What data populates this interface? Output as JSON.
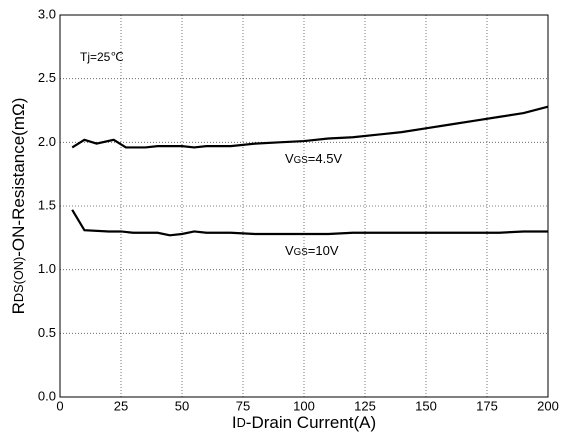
{
  "chart_data": {
    "type": "line",
    "xlabel": {
      "main": "I",
      "sub": "D",
      "rest": "-Drain Current(A)"
    },
    "ylabel": {
      "main": "R",
      "sub": "DS(ON)",
      "rest": "-ON-Resistance(mΩ)"
    },
    "annotations": [
      {
        "main": "Tj=25℃"
      },
      {
        "main": "V",
        "sub": "GS",
        "rest": "=4.5V"
      },
      {
        "main": "V",
        "sub": "GS",
        "rest": "=10V"
      }
    ],
    "series": [
      {
        "color": "#000000",
        "x": [
          5,
          10,
          15,
          22,
          27,
          35,
          40,
          50,
          55,
          60,
          70,
          80,
          90,
          100,
          110,
          120,
          130,
          140,
          150,
          160,
          170,
          180,
          190,
          200
        ],
        "values": [
          1.96,
          2.02,
          1.99,
          2.02,
          1.96,
          1.96,
          1.97,
          1.97,
          1.96,
          1.97,
          1.97,
          1.99,
          2.0,
          2.01,
          2.03,
          2.04,
          2.06,
          2.08,
          2.11,
          2.14,
          2.17,
          2.2,
          2.23,
          2.28
        ]
      },
      {
        "color": "#000000",
        "x": [
          5,
          10,
          20,
          25,
          30,
          40,
          45,
          50,
          55,
          60,
          70,
          80,
          90,
          100,
          110,
          120,
          140,
          160,
          180,
          190,
          200
        ],
        "values": [
          1.47,
          1.31,
          1.3,
          1.3,
          1.29,
          1.29,
          1.27,
          1.28,
          1.3,
          1.29,
          1.29,
          1.28,
          1.28,
          1.28,
          1.28,
          1.29,
          1.29,
          1.29,
          1.29,
          1.3,
          1.3
        ]
      }
    ],
    "xlim": [
      0,
      200
    ],
    "xticks": [
      0,
      25,
      50,
      75,
      100,
      125,
      150,
      175,
      200
    ],
    "ylim": [
      0,
      3
    ],
    "yticks": [
      {
        "value": 0,
        "label": "0.0"
      },
      0.5,
      {
        "value": 1,
        "label": "1.0"
      },
      1.5,
      {
        "value": 2,
        "label": "2.0"
      },
      2.5,
      {
        "value": 3,
        "label": "3.0"
      }
    ],
    "grid": true
  }
}
